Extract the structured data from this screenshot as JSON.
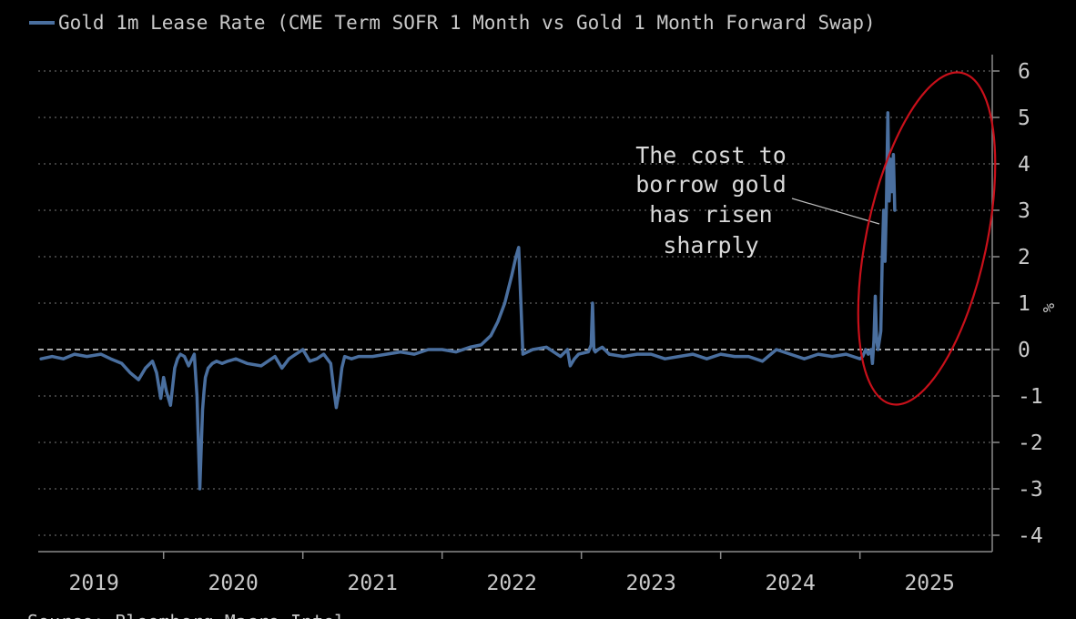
{
  "chart_data": {
    "type": "line",
    "title": "",
    "xlabel": "",
    "ylabel": "",
    "y_unit": "%",
    "ylim": [
      -4.3,
      6.2
    ],
    "y_ticks": [
      6,
      5,
      4,
      3,
      2,
      1,
      0,
      -1,
      -2,
      -3,
      -4
    ],
    "x_range": [
      2018.6,
      2025.45
    ],
    "x_ticks": [
      {
        "label": "2019",
        "pos": 2019.0
      },
      {
        "label": "2020",
        "pos": 2020.0
      },
      {
        "label": "2021",
        "pos": 2021.0
      },
      {
        "label": "2022",
        "pos": 2022.0
      },
      {
        "label": "2023",
        "pos": 2023.0
      },
      {
        "label": "2024",
        "pos": 2024.0
      },
      {
        "label": "2025",
        "pos": 2025.0
      }
    ],
    "x_separators": [
      2019.5,
      2020.5,
      2021.5,
      2022.5,
      2023.5,
      2024.5
    ],
    "grid": true,
    "legend_position": "top-left",
    "colors": {
      "series": "#4a6f9f",
      "grid": "#777777",
      "zero_line": "#e0e0e0",
      "circle": "#c8101a",
      "text": "#c9c9c9",
      "axis": "#8a8a8a"
    },
    "series": [
      {
        "name": "Gold 1m Lease Rate (CME Term SOFR 1 Month vs Gold 1 Month Forward Swap)",
        "x": [
          2018.62,
          2018.7,
          2018.78,
          2018.86,
          2018.95,
          2019.05,
          2019.12,
          2019.2,
          2019.26,
          2019.32,
          2019.37,
          2019.42,
          2019.45,
          2019.48,
          2019.5,
          2019.52,
          2019.55,
          2019.58,
          2019.6,
          2019.62,
          2019.65,
          2019.68,
          2019.72,
          2019.74,
          2019.76,
          2019.78,
          2019.79,
          2019.8,
          2019.82,
          2019.85,
          2019.88,
          2019.92,
          2019.96,
          2020.02,
          2020.1,
          2020.2,
          2020.3,
          2020.35,
          2020.4,
          2020.45,
          2020.5,
          2020.55,
          2020.6,
          2020.65,
          2020.7,
          2020.72,
          2020.74,
          2020.76,
          2020.78,
          2020.8,
          2020.85,
          2020.9,
          2021.0,
          2021.1,
          2021.2,
          2021.3,
          2021.4,
          2021.5,
          2021.6,
          2021.7,
          2021.78,
          2021.85,
          2021.9,
          2021.95,
          2022.0,
          2022.03,
          2022.05,
          2022.06,
          2022.08,
          2022.15,
          2022.25,
          2022.35,
          2022.4,
          2022.42,
          2022.45,
          2022.48,
          2022.55,
          2022.57,
          2022.58,
          2022.59,
          2022.6,
          2022.62,
          2022.65,
          2022.7,
          2022.8,
          2022.9,
          2023.0,
          2023.1,
          2023.2,
          2023.3,
          2023.4,
          2023.5,
          2023.6,
          2023.7,
          2023.8,
          2023.9,
          2024.0,
          2024.1,
          2024.2,
          2024.3,
          2024.4,
          2024.45,
          2024.5,
          2024.52,
          2024.54,
          2024.56,
          2024.58,
          2024.59,
          2024.6,
          2024.61,
          2024.62,
          2024.63,
          2024.65,
          2024.66,
          2024.67,
          2024.68,
          2024.69,
          2024.7,
          2024.71,
          2024.72,
          2024.73,
          2024.74,
          2024.75
        ],
        "values": [
          -0.2,
          -0.15,
          -0.2,
          -0.1,
          -0.15,
          -0.1,
          -0.2,
          -0.3,
          -0.5,
          -0.65,
          -0.4,
          -0.25,
          -0.5,
          -1.05,
          -0.6,
          -0.9,
          -1.2,
          -0.4,
          -0.2,
          -0.1,
          -0.15,
          -0.35,
          -0.1,
          -1.0,
          -3.0,
          -1.3,
          -0.9,
          -0.6,
          -0.4,
          -0.3,
          -0.25,
          -0.3,
          -0.25,
          -0.2,
          -0.3,
          -0.35,
          -0.15,
          -0.4,
          -0.2,
          -0.1,
          0.0,
          -0.25,
          -0.2,
          -0.1,
          -0.3,
          -0.8,
          -1.25,
          -0.9,
          -0.4,
          -0.15,
          -0.2,
          -0.15,
          -0.15,
          -0.1,
          -0.05,
          -0.1,
          0.0,
          0.0,
          -0.05,
          0.05,
          0.1,
          0.3,
          0.6,
          1.0,
          1.6,
          2.0,
          2.2,
          1.4,
          -0.1,
          0.0,
          0.05,
          -0.15,
          0.0,
          -0.35,
          -0.2,
          -0.1,
          -0.05,
          0.1,
          1.0,
          0.0,
          -0.05,
          0.0,
          0.05,
          -0.1,
          -0.15,
          -0.1,
          -0.1,
          -0.2,
          -0.15,
          -0.1,
          -0.2,
          -0.1,
          -0.15,
          -0.15,
          -0.25,
          0.0,
          -0.1,
          -0.2,
          -0.1,
          -0.15,
          -0.1,
          -0.15,
          -0.2,
          -0.15,
          0.0,
          -0.1,
          0.0,
          -0.3,
          0.2,
          1.15,
          0.2,
          0.0,
          0.4,
          1.9,
          3.0,
          1.9,
          3.1,
          5.1,
          3.2,
          4.1,
          3.4,
          4.2,
          3.0
        ]
      }
    ],
    "annotation": {
      "lines": [
        "The cost to",
        "borrow gold",
        "has risen",
        "sharply"
      ]
    }
  },
  "unit_label": "%",
  "source_text": "Source: Bloomberg Macro Intel"
}
